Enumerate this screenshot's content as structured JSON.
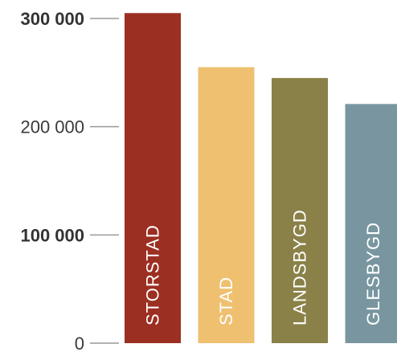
{
  "chart_data": {
    "type": "bar",
    "title": "",
    "xlabel": "",
    "ylabel": "",
    "ylim": [
      0,
      300000
    ],
    "grid": false,
    "legend": "none",
    "yticks": [
      {
        "value": 300000,
        "label": "300 000",
        "bold": true
      },
      {
        "value": 200000,
        "label": "200 000",
        "bold": false
      },
      {
        "value": 100000,
        "label": "100 000",
        "bold": true
      },
      {
        "value": 0,
        "label": "0",
        "bold": false
      }
    ],
    "categories": [
      "STORSTAD",
      "STAD",
      "LANDSBYGD",
      "GLESBYGD"
    ],
    "values": [
      305000,
      255000,
      245000,
      221000
    ],
    "colors": [
      "#9b2f22",
      "#eec070",
      "#8a8148",
      "#7996a0"
    ]
  }
}
